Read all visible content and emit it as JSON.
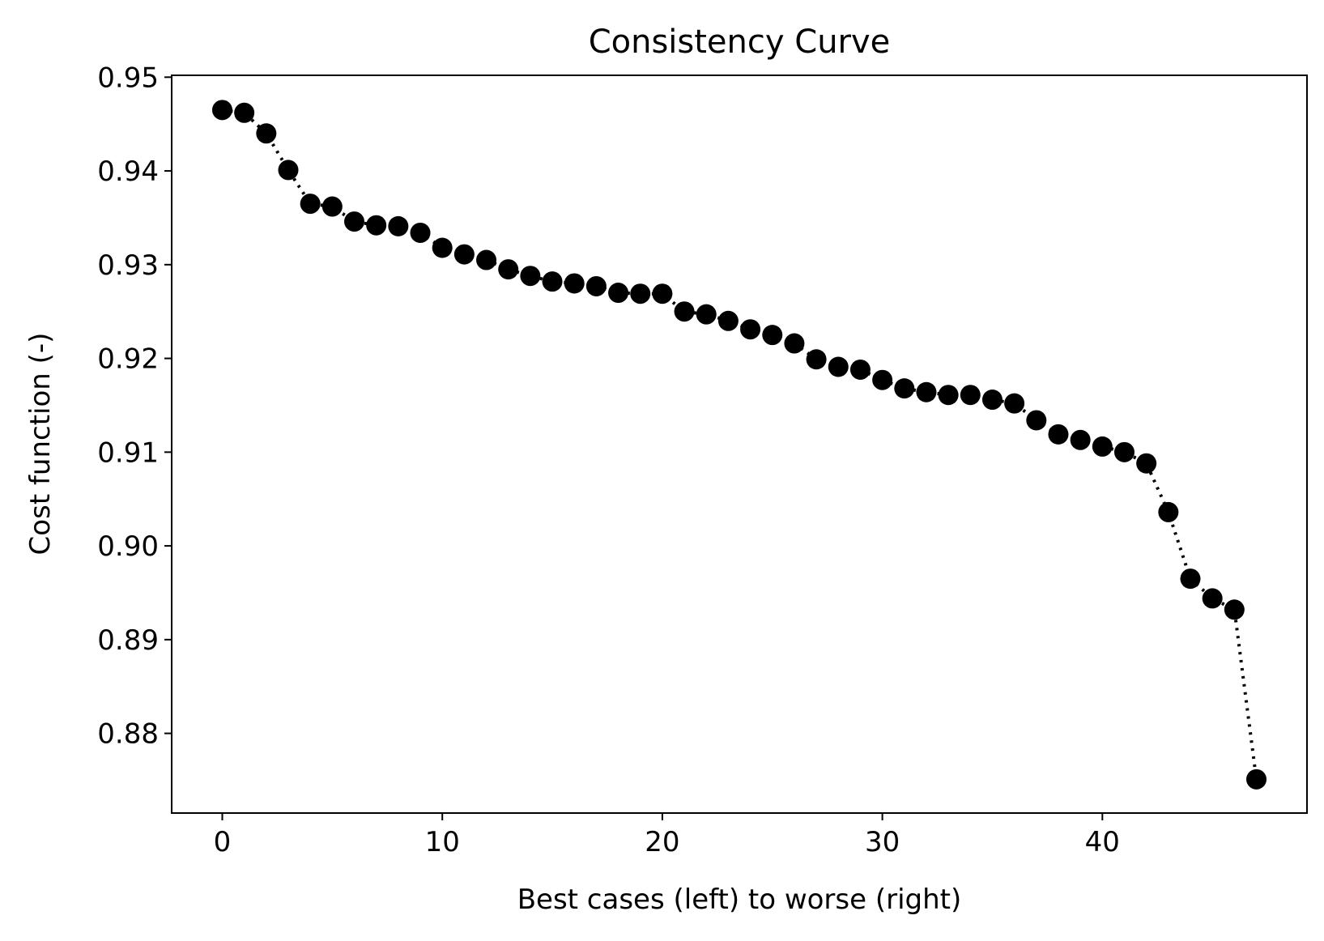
{
  "chart_data": {
    "type": "line",
    "title": "Consistency Curve",
    "xlabel": "Best cases (left) to worse (right)",
    "ylabel": "Cost function (-)",
    "xlim": [
      -2.3,
      49.3
    ],
    "ylim": [
      0.8715,
      0.9502
    ],
    "xticks": [
      0,
      10,
      20,
      30,
      40
    ],
    "xtick_labels": [
      "0",
      "10",
      "20",
      "30",
      "40"
    ],
    "yticks": [
      0.88,
      0.89,
      0.9,
      0.91,
      0.92,
      0.93,
      0.94,
      0.95
    ],
    "ytick_labels": [
      "0.88",
      "0.89",
      "0.90",
      "0.91",
      "0.92",
      "0.93",
      "0.94",
      "0.95"
    ],
    "grid": false,
    "line_style": "dotted",
    "marker": "circle",
    "color": "#000000",
    "series": [
      {
        "x": [
          0,
          1,
          2,
          3,
          4,
          5,
          6,
          7,
          8,
          9,
          10,
          11,
          12,
          13,
          14,
          15,
          16,
          17,
          18,
          19,
          20,
          21,
          22,
          23,
          24,
          25,
          26,
          27,
          28,
          29,
          30,
          31,
          32,
          33,
          34,
          35,
          36,
          37,
          38,
          39,
          40,
          41,
          42,
          43,
          44,
          45,
          46,
          47
        ],
        "y": [
          0.9465,
          0.9462,
          0.944,
          0.9401,
          0.9365,
          0.9362,
          0.9346,
          0.9342,
          0.9341,
          0.9334,
          0.9318,
          0.9311,
          0.9305,
          0.9295,
          0.9288,
          0.9282,
          0.928,
          0.9277,
          0.927,
          0.9269,
          0.9269,
          0.925,
          0.9247,
          0.924,
          0.9231,
          0.9225,
          0.9216,
          0.9199,
          0.9191,
          0.9188,
          0.9177,
          0.9168,
          0.9164,
          0.9161,
          0.9161,
          0.9156,
          0.9152,
          0.9134,
          0.9119,
          0.9113,
          0.9106,
          0.91,
          0.9088,
          0.9036,
          0.8965,
          0.8944,
          0.8932,
          0.8751
        ]
      }
    ]
  }
}
